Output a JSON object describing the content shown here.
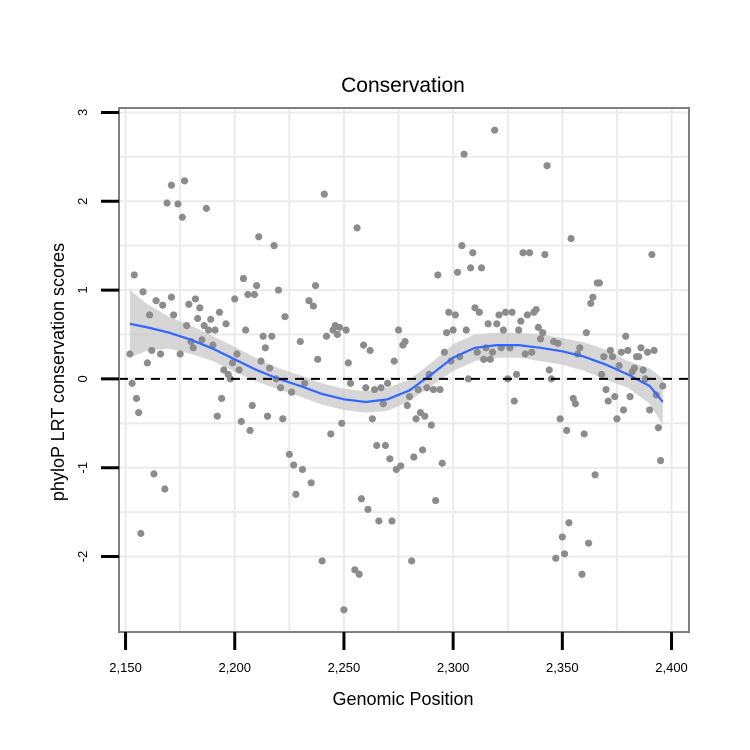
{
  "chart_data": {
    "type": "scatter",
    "title": "Conservation",
    "xlabel": "Genomic Position",
    "ylabel": "phyloP LRT conservation scores",
    "xlim": [
      2147,
      2408
    ],
    "ylim": [
      -2.85,
      3.05
    ],
    "x_ticks": [
      2150,
      2200,
      2250,
      2300,
      2350,
      2400
    ],
    "x_tick_labels": [
      "2,150",
      "2,200",
      "2,250",
      "2,300",
      "2,350",
      "2,400"
    ],
    "y_ticks": [
      -2,
      -1,
      0,
      1,
      2,
      3
    ],
    "y_tick_labels": [
      "-2",
      "-1",
      "0",
      "1",
      "2",
      "3"
    ],
    "grid": true,
    "legend": "none",
    "reference_line": {
      "y": 0,
      "style": "dashed",
      "color": "#000000"
    },
    "colors": {
      "points": "#8c8c8c",
      "smooth_line": "#3366ff",
      "confidence_band": "#c8c8c8",
      "panel_border": "#7f7f7f",
      "grid": "#ebebeb"
    },
    "series": [
      {
        "type": "scatter",
        "points": [
          [
            2152,
            0.28
          ],
          [
            2153,
            -0.05
          ],
          [
            2154,
            1.17
          ],
          [
            2155,
            -0.22
          ],
          [
            2156,
            -0.38
          ],
          [
            2157,
            -1.74
          ],
          [
            2158,
            0.98
          ],
          [
            2160,
            0.18
          ],
          [
            2161,
            0.72
          ],
          [
            2162,
            0.32
          ],
          [
            2163,
            -1.07
          ],
          [
            2164,
            0.88
          ],
          [
            2166,
            0.28
          ],
          [
            2167,
            0.83
          ],
          [
            2168,
            -1.24
          ],
          [
            2169,
            1.98
          ],
          [
            2171,
            0.92
          ],
          [
            2171,
            2.18
          ],
          [
            2172,
            0.72
          ],
          [
            2174,
            1.97
          ],
          [
            2175,
            0.28
          ],
          [
            2176,
            1.82
          ],
          [
            2177,
            2.23
          ],
          [
            2178,
            0.6
          ],
          [
            2179,
            0.84
          ],
          [
            2180,
            0.42
          ],
          [
            2181,
            0.35
          ],
          [
            2182,
            0.9
          ],
          [
            2183,
            0.68
          ],
          [
            2184,
            0.8
          ],
          [
            2185,
            0.44
          ],
          [
            2186,
            0.6
          ],
          [
            2187,
            1.92
          ],
          [
            2188,
            0.55
          ],
          [
            2189,
            0.67
          ],
          [
            2190,
            0.38
          ],
          [
            2191,
            0.55
          ],
          [
            2192,
            -0.42
          ],
          [
            2193,
            0.75
          ],
          [
            2194,
            -0.22
          ],
          [
            2195,
            0.1
          ],
          [
            2196,
            0.62
          ],
          [
            2197,
            0.05
          ],
          [
            2198,
            0.0
          ],
          [
            2199,
            0.18
          ],
          [
            2200,
            0.9
          ],
          [
            2201,
            0.28
          ],
          [
            2202,
            0.1
          ],
          [
            2203,
            -0.48
          ],
          [
            2204,
            1.13
          ],
          [
            2205,
            0.55
          ],
          [
            2206,
            0.95
          ],
          [
            2207,
            -0.58
          ],
          [
            2208,
            -0.3
          ],
          [
            2209,
            0.95
          ],
          [
            2210,
            1.05
          ],
          [
            2211,
            1.6
          ],
          [
            2212,
            0.2
          ],
          [
            2213,
            0.48
          ],
          [
            2214,
            0.35
          ],
          [
            2215,
            -0.42
          ],
          [
            2216,
            0.12
          ],
          [
            2217,
            0.48
          ],
          [
            2218,
            1.5
          ],
          [
            2219,
            0.0
          ],
          [
            2220,
            1.0
          ],
          [
            2221,
            -0.1
          ],
          [
            2222,
            -0.45
          ],
          [
            2223,
            0.7
          ],
          [
            2225,
            -0.85
          ],
          [
            2226,
            -0.15
          ],
          [
            2227,
            -0.97
          ],
          [
            2228,
            -1.3
          ],
          [
            2230,
            0.42
          ],
          [
            2231,
            -1.02
          ],
          [
            2232,
            -0.05
          ],
          [
            2234,
            0.88
          ],
          [
            2235,
            -1.17
          ],
          [
            2236,
            0.82
          ],
          [
            2237,
            1.05
          ],
          [
            2238,
            0.22
          ],
          [
            2240,
            -2.05
          ],
          [
            2241,
            2.08
          ],
          [
            2242,
            0.48
          ],
          [
            2244,
            -0.62
          ],
          [
            2245,
            0.55
          ],
          [
            2246,
            0.6
          ],
          [
            2247,
            0.5
          ],
          [
            2248,
            0.58
          ],
          [
            2249,
            -0.5
          ],
          [
            2250,
            -2.6
          ],
          [
            2251,
            0.55
          ],
          [
            2252,
            0.18
          ],
          [
            2253,
            -0.05
          ],
          [
            2255,
            -2.15
          ],
          [
            2256,
            1.7
          ],
          [
            2257,
            -2.2
          ],
          [
            2258,
            -1.35
          ],
          [
            2259,
            0.38
          ],
          [
            2260,
            -0.1
          ],
          [
            2261,
            -1.47
          ],
          [
            2262,
            0.32
          ],
          [
            2263,
            -0.45
          ],
          [
            2264,
            -0.12
          ],
          [
            2265,
            -0.75
          ],
          [
            2266,
            -1.6
          ],
          [
            2267,
            -0.1
          ],
          [
            2268,
            -0.28
          ],
          [
            2269,
            -0.75
          ],
          [
            2270,
            -0.05
          ],
          [
            2271,
            -0.9
          ],
          [
            2272,
            -1.6
          ],
          [
            2273,
            0.2
          ],
          [
            2274,
            -1.02
          ],
          [
            2275,
            0.55
          ],
          [
            2276,
            -0.98
          ],
          [
            2277,
            0.38
          ],
          [
            2278,
            0.42
          ],
          [
            2279,
            -0.3
          ],
          [
            2280,
            -0.2
          ],
          [
            2281,
            -2.05
          ],
          [
            2282,
            -0.88
          ],
          [
            2283,
            -0.45
          ],
          [
            2284,
            -0.12
          ],
          [
            2285,
            -0.38
          ],
          [
            2286,
            -0.8
          ],
          [
            2287,
            -0.42
          ],
          [
            2288,
            -0.1
          ],
          [
            2289,
            0.05
          ],
          [
            2290,
            -0.52
          ],
          [
            2291,
            -0.12
          ],
          [
            2292,
            -1.37
          ],
          [
            2293,
            1.17
          ],
          [
            2294,
            -0.12
          ],
          [
            2295,
            -0.95
          ],
          [
            2296,
            0.3
          ],
          [
            2297,
            0.52
          ],
          [
            2298,
            0.75
          ],
          [
            2299,
            0.2
          ],
          [
            2300,
            0.55
          ],
          [
            2301,
            0.72
          ],
          [
            2302,
            1.2
          ],
          [
            2303,
            0.25
          ],
          [
            2304,
            1.5
          ],
          [
            2305,
            2.53
          ],
          [
            2306,
            0.55
          ],
          [
            2307,
            0.0
          ],
          [
            2308,
            1.25
          ],
          [
            2309,
            1.42
          ],
          [
            2310,
            0.8
          ],
          [
            2311,
            0.3
          ],
          [
            2312,
            0.75
          ],
          [
            2313,
            1.25
          ],
          [
            2314,
            0.22
          ],
          [
            2315,
            0.35
          ],
          [
            2316,
            0.62
          ],
          [
            2317,
            0.22
          ],
          [
            2318,
            0.3
          ],
          [
            2319,
            2.8
          ],
          [
            2320,
            0.62
          ],
          [
            2321,
            0.72
          ],
          [
            2322,
            0.35
          ],
          [
            2323,
            0.55
          ],
          [
            2324,
            0.75
          ],
          [
            2325,
            0.0
          ],
          [
            2326,
            0.35
          ],
          [
            2327,
            0.75
          ],
          [
            2328,
            -0.25
          ],
          [
            2329,
            0.05
          ],
          [
            2330,
            0.55
          ],
          [
            2331,
            0.65
          ],
          [
            2332,
            1.42
          ],
          [
            2333,
            0.28
          ],
          [
            2334,
            0.72
          ],
          [
            2335,
            1.42
          ],
          [
            2336,
            0.3
          ],
          [
            2337,
            0.75
          ],
          [
            2338,
            0.78
          ],
          [
            2339,
            0.58
          ],
          [
            2340,
            0.45
          ],
          [
            2341,
            0.52
          ],
          [
            2342,
            1.4
          ],
          [
            2343,
            2.4
          ],
          [
            2344,
            0.1
          ],
          [
            2345,
            0.0
          ],
          [
            2346,
            0.42
          ],
          [
            2347,
            -2.02
          ],
          [
            2348,
            0.4
          ],
          [
            2349,
            -0.45
          ],
          [
            2350,
            -1.78
          ],
          [
            2351,
            -1.97
          ],
          [
            2352,
            -0.58
          ],
          [
            2353,
            -1.62
          ],
          [
            2354,
            1.58
          ],
          [
            2355,
            -0.22
          ],
          [
            2356,
            -0.28
          ],
          [
            2357,
            0.28
          ],
          [
            2358,
            0.35
          ],
          [
            2359,
            -2.2
          ],
          [
            2360,
            -0.62
          ],
          [
            2361,
            0.52
          ],
          [
            2362,
            -1.85
          ],
          [
            2363,
            0.85
          ],
          [
            2364,
            0.92
          ],
          [
            2365,
            -1.08
          ],
          [
            2366,
            1.08
          ],
          [
            2367,
            1.08
          ],
          [
            2368,
            0.05
          ],
          [
            2369,
            0.25
          ],
          [
            2370,
            -0.12
          ],
          [
            2371,
            -0.25
          ],
          [
            2372,
            0.32
          ],
          [
            2373,
            0.25
          ],
          [
            2374,
            -0.2
          ],
          [
            2375,
            -0.45
          ],
          [
            2376,
            0.15
          ],
          [
            2377,
            0.3
          ],
          [
            2378,
            -0.35
          ],
          [
            2379,
            0.48
          ],
          [
            2380,
            0.32
          ],
          [
            2381,
            -0.2
          ],
          [
            2382,
            0.08
          ],
          [
            2383,
            0.12
          ],
          [
            2384,
            0.25
          ],
          [
            2385,
            0.25
          ],
          [
            2386,
            0.35
          ],
          [
            2387,
            0.1
          ],
          [
            2388,
            0.0
          ],
          [
            2389,
            0.3
          ],
          [
            2390,
            -0.35
          ],
          [
            2391,
            1.4
          ],
          [
            2392,
            0.32
          ],
          [
            2393,
            -0.18
          ],
          [
            2394,
            -0.55
          ],
          [
            2395,
            -0.92
          ],
          [
            2396,
            -0.08
          ]
        ]
      },
      {
        "type": "line",
        "points": [
          [
            2152,
            0.62
          ],
          [
            2160,
            0.58
          ],
          [
            2170,
            0.52
          ],
          [
            2180,
            0.44
          ],
          [
            2190,
            0.34
          ],
          [
            2200,
            0.22
          ],
          [
            2210,
            0.1
          ],
          [
            2220,
            0.0
          ],
          [
            2230,
            -0.08
          ],
          [
            2240,
            -0.17
          ],
          [
            2250,
            -0.23
          ],
          [
            2260,
            -0.26
          ],
          [
            2270,
            -0.23
          ],
          [
            2280,
            -0.13
          ],
          [
            2290,
            0.05
          ],
          [
            2300,
            0.24
          ],
          [
            2310,
            0.35
          ],
          [
            2320,
            0.38
          ],
          [
            2330,
            0.38
          ],
          [
            2340,
            0.35
          ],
          [
            2350,
            0.31
          ],
          [
            2360,
            0.25
          ],
          [
            2370,
            0.16
          ],
          [
            2380,
            0.05
          ],
          [
            2390,
            -0.08
          ],
          [
            2396,
            -0.26
          ]
        ]
      },
      {
        "type": "area",
        "x": [
          2152,
          2160,
          2170,
          2180,
          2190,
          2200,
          2210,
          2220,
          2230,
          2240,
          2250,
          2260,
          2270,
          2280,
          2290,
          2300,
          2310,
          2320,
          2330,
          2340,
          2350,
          2360,
          2370,
          2380,
          2390,
          2396
        ],
        "upper": [
          1.0,
          0.84,
          0.7,
          0.6,
          0.48,
          0.36,
          0.23,
          0.12,
          0.04,
          -0.05,
          -0.11,
          -0.14,
          -0.1,
          -0.01,
          0.18,
          0.39,
          0.5,
          0.52,
          0.52,
          0.5,
          0.46,
          0.41,
          0.33,
          0.2,
          0.12,
          -0.0
        ],
        "lower": [
          0.24,
          0.32,
          0.34,
          0.28,
          0.2,
          0.08,
          -0.03,
          -0.12,
          -0.2,
          -0.29,
          -0.35,
          -0.38,
          -0.36,
          -0.25,
          -0.08,
          0.09,
          0.2,
          0.24,
          0.24,
          0.2,
          0.16,
          0.09,
          -0.01,
          -0.1,
          -0.28,
          -0.52
        ]
      }
    ]
  }
}
